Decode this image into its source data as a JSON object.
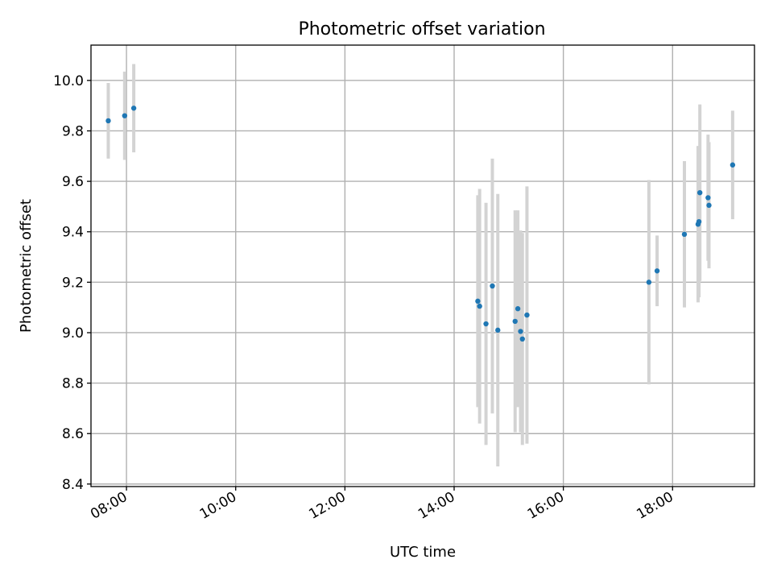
{
  "chart_data": {
    "type": "scatter",
    "title": "Photometric offset variation",
    "xlabel": "UTC time",
    "ylabel": "Photometric offset",
    "x_axis_type": "time",
    "xlim": [
      "07:21",
      "19:30"
    ],
    "ylim": [
      8.39,
      10.14
    ],
    "x_ticks": [
      "08:00",
      "10:00",
      "12:00",
      "14:00",
      "16:00",
      "18:00"
    ],
    "y_ticks": [
      8.4,
      8.6,
      8.8,
      9.0,
      9.2,
      9.4,
      9.6,
      9.8,
      10.0
    ],
    "grid": true,
    "legend": "none",
    "marker_color": "#1f77b4",
    "error_bar_color": "#d3d3d3",
    "points": [
      {
        "t": "07:40",
        "y": 9.84,
        "err": 0.15
      },
      {
        "t": "07:58",
        "y": 9.86,
        "err": 0.175
      },
      {
        "t": "08:08",
        "y": 9.89,
        "err": 0.175
      },
      {
        "t": "14:26",
        "y": 9.125,
        "err": 0.42
      },
      {
        "t": "14:28",
        "y": 9.105,
        "err": 0.465
      },
      {
        "t": "14:35",
        "y": 9.035,
        "err": 0.48
      },
      {
        "t": "14:42",
        "y": 9.185,
        "err": 0.505
      },
      {
        "t": "14:48",
        "y": 9.01,
        "err": 0.54
      },
      {
        "t": "15:07",
        "y": 9.045,
        "err": 0.44
      },
      {
        "t": "15:10",
        "y": 9.095,
        "err": 0.39
      },
      {
        "t": "15:13",
        "y": 9.005,
        "err": 0.4
      },
      {
        "t": "15:15",
        "y": 8.975,
        "err": 0.42
      },
      {
        "t": "15:20",
        "y": 9.07,
        "err": 0.51
      },
      {
        "t": "17:34",
        "y": 9.2,
        "err": 0.405
      },
      {
        "t": "17:43",
        "y": 9.245,
        "err": 0.14
      },
      {
        "t": "18:13",
        "y": 9.39,
        "err": 0.29
      },
      {
        "t": "18:28",
        "y": 9.43,
        "err": 0.31
      },
      {
        "t": "18:29",
        "y": 9.44,
        "err": 0.3
      },
      {
        "t": "18:30",
        "y": 9.555,
        "err": 0.35
      },
      {
        "t": "18:39",
        "y": 9.535,
        "err": 0.25
      },
      {
        "t": "18:40",
        "y": 9.505,
        "err": 0.25
      },
      {
        "t": "19:06",
        "y": 9.665,
        "err": 0.215
      }
    ]
  }
}
